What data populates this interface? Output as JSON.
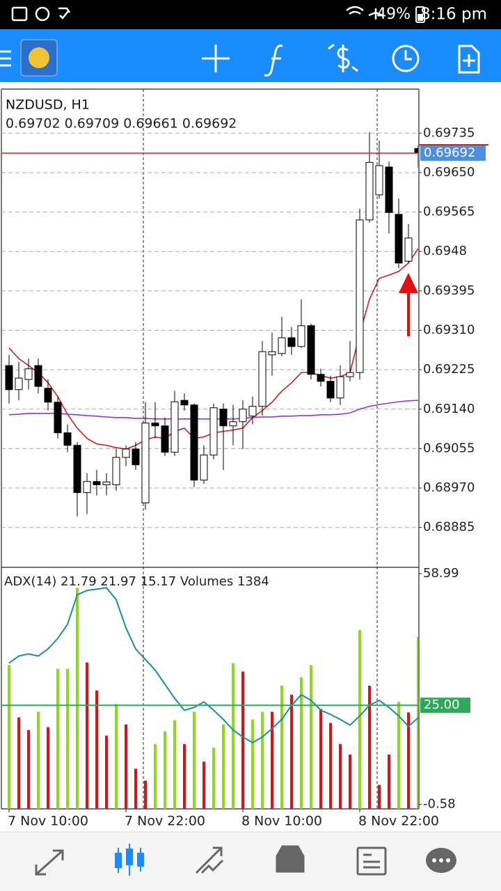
{
  "status_bar": {
    "battery": "49%",
    "time": "8:16 pm"
  },
  "chart_data": [
    {
      "type": "candlestick",
      "title": "NZDUSD, H1",
      "subtitle": "0.69702 0.69709 0.69661 0.69692",
      "categories": [
        "7 Nov 10:00",
        null,
        null,
        null,
        null,
        null,
        null,
        null,
        null,
        null,
        null,
        null,
        "7 Nov 22:00",
        null,
        null,
        null,
        null,
        null,
        null,
        null,
        null,
        null,
        null,
        null,
        "8 Nov 10:00",
        null,
        null,
        null,
        null,
        null,
        null,
        null,
        null,
        null,
        null,
        null,
        "8 Nov 22:00",
        null,
        null,
        null,
        null,
        null,
        null
      ],
      "open": [
        0.69234,
        0.69182,
        0.69204,
        0.69234,
        0.69185,
        0.69155,
        0.69089,
        0.69062,
        0.6896,
        0.68984,
        0.68977,
        0.68977,
        0.69036,
        0.69054,
        0.68938,
        0.6911,
        0.69104,
        0.69047,
        0.69159,
        0.69149,
        0.68987,
        0.69041,
        0.6914,
        0.69104,
        0.69113,
        0.69125,
        0.69146,
        0.69257,
        0.6926,
        0.69294,
        0.69275,
        0.6932,
        0.69215,
        0.692,
        0.69164,
        0.6921,
        0.69219,
        0.69548,
        0.69602,
        0.69662,
        0.6956,
        0.69459,
        0.69702
      ],
      "high": [
        0.69257,
        0.69242,
        0.69249,
        0.69249,
        0.69204,
        0.69167,
        0.69107,
        0.69069,
        0.69002,
        0.69009,
        0.69002,
        0.69054,
        0.69062,
        0.69069,
        0.69155,
        0.69155,
        0.69122,
        0.69179,
        0.69174,
        0.69152,
        0.69062,
        0.69152,
        0.69152,
        0.69149,
        0.69159,
        0.69167,
        0.69287,
        0.69305,
        0.69339,
        0.69317,
        0.69377,
        0.69324,
        0.69227,
        0.69212,
        0.69234,
        0.69287,
        0.69572,
        0.69737,
        0.69719,
        0.69674,
        0.69594,
        0.69539,
        0.69709
      ],
      "low": [
        0.69152,
        0.69159,
        0.69182,
        0.69174,
        0.69137,
        0.69077,
        0.69047,
        0.68909,
        0.68914,
        0.68954,
        0.68954,
        0.68964,
        0.69017,
        0.69009,
        0.68923,
        0.69077,
        0.69039,
        0.69039,
        0.69137,
        0.68972,
        0.68979,
        0.69032,
        0.69009,
        0.69062,
        0.69054,
        0.69107,
        0.69126,
        0.69212,
        0.69254,
        0.69257,
        0.69272,
        0.69204,
        0.69189,
        0.69155,
        0.69149,
        0.692,
        0.69204,
        0.69542,
        0.69594,
        0.69519,
        0.69444,
        0.69455,
        0.69661
      ],
      "close": [
        0.69182,
        0.69207,
        0.69227,
        0.69189,
        0.69155,
        0.69089,
        0.69062,
        0.6896,
        0.68984,
        0.68977,
        0.68983,
        0.69036,
        0.69054,
        0.6902,
        0.6911,
        0.69104,
        0.69047,
        0.69156,
        0.69149,
        0.68987,
        0.69041,
        0.69143,
        0.69104,
        0.69113,
        0.6914,
        0.69146,
        0.69264,
        0.69264,
        0.69294,
        0.69275,
        0.6932,
        0.69215,
        0.692,
        0.69164,
        0.6921,
        0.69219,
        0.69548,
        0.69672,
        0.69665,
        0.69564,
        0.69455,
        0.69509,
        0.69692
      ],
      "series": [
        {
          "color": "#cc1f1f",
          "values": [
            0.69272,
            0.69249,
            0.69234,
            0.69219,
            0.69197,
            0.69167,
            0.69129,
            0.69099,
            0.69077,
            0.69065,
            0.69062,
            0.69057,
            0.69054,
            0.69062,
            0.69074,
            0.6908,
            0.69077,
            0.69092,
            0.69099,
            0.69077,
            0.6908,
            0.69089,
            0.69092,
            0.69095,
            0.69099,
            0.69122,
            0.69137,
            0.69155,
            0.69179,
            0.69197,
            0.69219,
            0.69219,
            0.69212,
            0.69207,
            0.6921,
            0.69219,
            0.69302,
            0.69377,
            0.69422,
            0.69429,
            0.69437,
            0.69455,
            0.69486
          ]
        },
        {
          "color": "#9b30d9",
          "values": [
            0.69128,
            0.69129,
            0.69131,
            0.69131,
            0.69131,
            0.69131,
            0.69129,
            0.69128,
            0.69126,
            0.69125,
            0.69123,
            0.69122,
            0.69122,
            0.6912,
            0.6912,
            0.69119,
            0.69119,
            0.69119,
            0.69119,
            0.69119,
            0.69119,
            0.69119,
            0.69119,
            0.69119,
            0.6912,
            0.69122,
            0.69123,
            0.69123,
            0.69125,
            0.69125,
            0.69126,
            0.69126,
            0.69128,
            0.69128,
            0.69129,
            0.69132,
            0.6914,
            0.69146,
            0.6915,
            0.69153,
            0.69156,
            0.69158,
            0.69159
          ]
        }
      ],
      "bid": 0.69692,
      "ylim": [
        0.68799,
        0.6983
      ],
      "yticks": [
        0.69735,
        {
          "value": 0.6965,
          "label": "0.69650"
        },
        0.69565,
        0.6948,
        0.69395,
        {
          "value": 0.6931,
          "label": "0.69310"
        },
        0.69225,
        {
          "value": 0.6914,
          "label": "0.69140"
        },
        0.69055,
        {
          "value": 0.6897,
          "label": "0.68970"
        },
        0.68885
      ],
      "grid": true
    },
    {
      "type": "bar",
      "title": "ADX(14) 21.79 21.97 15.17 Volumes 1384",
      "series": [
        {
          "axis": "y2",
          "values": [
            1157,
            737,
            635,
            782,
            658,
            1128,
            1128,
            1780,
            1179,
            953,
            590,
            845,
            680,
            323,
            227,
            522,
            624,
            714,
            522,
            782,
            380,
            493,
            680,
            1174,
            1106,
            720,
            782,
            782,
            992,
            919,
            1060,
            1157,
            805,
            692,
            522,
            437,
            1440,
            992,
            193,
            437,
            862,
            777,
            1384
          ],
          "colors": [
            "#8fd81e",
            "#d3151c",
            "#d3151c",
            "#8fd81e",
            "#d3151c",
            "#8fd81e",
            "#8fd81e",
            "#8fd81e",
            "#d3151c",
            "#d3151c",
            "#d3151c",
            "#8fd81e",
            "#d3151c",
            "#d3151c",
            "#d3151c",
            "#8fd81e",
            "#8fd81e",
            "#8fd81e",
            "#d3151c",
            "#8fd81e",
            "#d3151c",
            "#8fd81e",
            "#8fd81e",
            "#8fd81e",
            "#d3151c",
            "#8fd81e",
            "#8fd81e",
            "#d3151c",
            "#8fd81e",
            "#d3151c",
            "#8fd81e",
            "#8fd81e",
            "#d3151c",
            "#d3151c",
            "#d3151c",
            "#d3151c",
            "#8fd81e",
            "#d3151c",
            "#d3151c",
            "#d3151c",
            "#8fd81e",
            "#d3151c",
            "#8fd81e"
          ]
        },
        {
          "type": "line",
          "color": "#1a8c9c",
          "values": [
            35.9,
            37.72,
            38.26,
            37.72,
            39.54,
            42.26,
            45.9,
            53.54,
            54.63,
            54.99,
            55.35,
            52.26,
            44.99,
            39.54,
            36.81,
            34.08,
            30.44,
            26.81,
            23.72,
            24.44,
            25.9,
            23.72,
            21.35,
            18.63,
            16.81,
            15.35,
            16.81,
            18.99,
            21.35,
            24.99,
            27.72,
            26.26,
            23.72,
            22.63,
            21.35,
            19.9,
            22.26,
            24.99,
            26.26,
            24.44,
            22.26,
            19.54,
            21.79
          ]
        }
      ],
      "levels": [
        {
          "value": 25,
          "label": "25.00"
        }
      ],
      "ylim": [
        -1.74,
        60.44
      ],
      "yticks": [
        58.99,
        -0.58
      ],
      "y2lim": [
        0,
        1940
      ]
    }
  ]
}
